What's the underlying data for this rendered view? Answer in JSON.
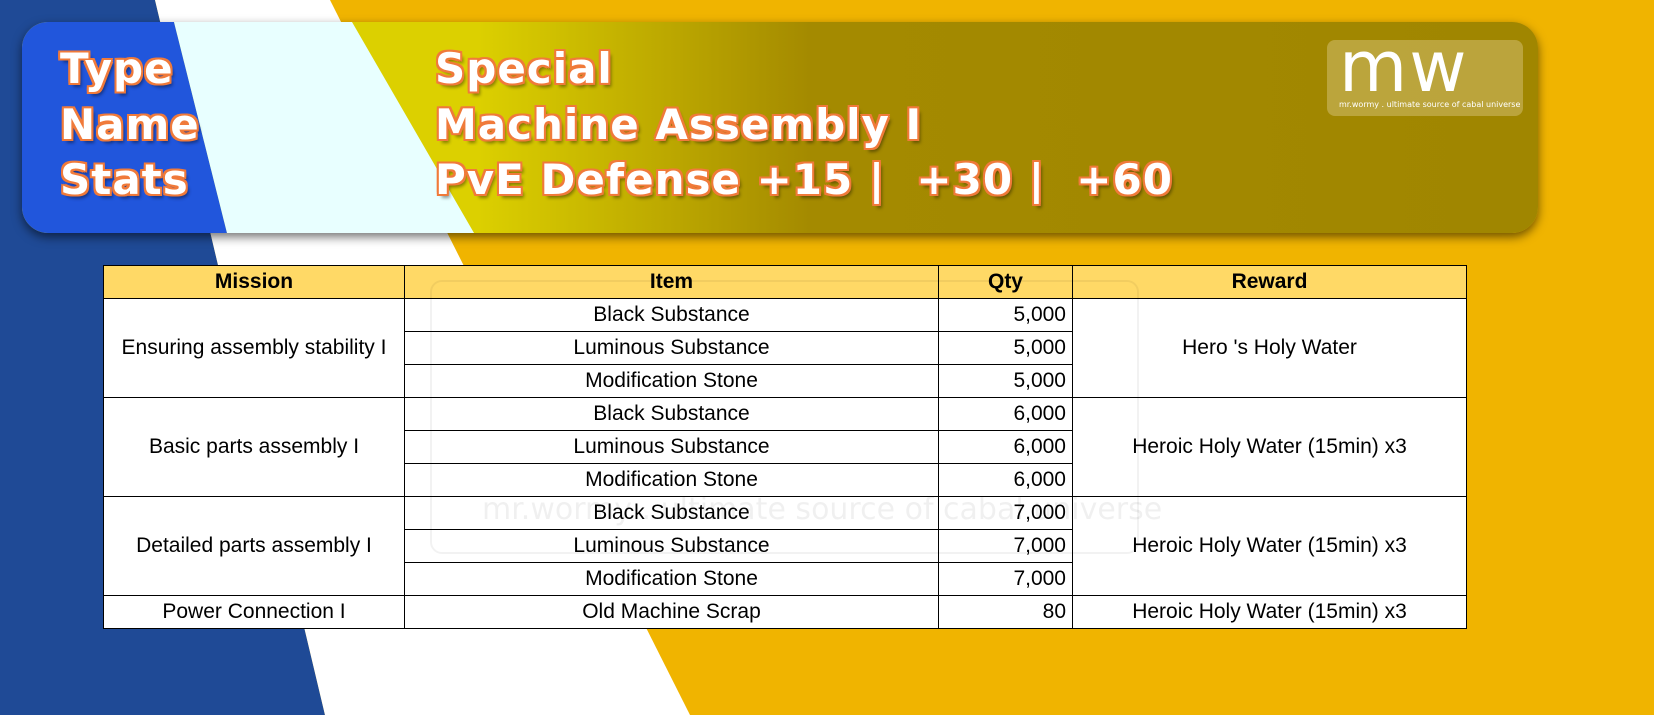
{
  "header": {
    "labels": [
      "Type",
      "Name",
      "Stats"
    ],
    "type": "Special",
    "name": "Machine Assembly I",
    "stats": "PvE Defense +15 |  +30 |  +60"
  },
  "logo": {
    "text": "mw",
    "tagline": "mr.wormy . ultimate source of cabal universe"
  },
  "colors": {
    "background": "#f0b400",
    "dark_blue": "#1f4a96",
    "card_blue": "#2156dc",
    "table_header": "#ffd966"
  },
  "table": {
    "columns": [
      "Mission",
      "Item",
      "Qty",
      "Reward"
    ],
    "missions": [
      {
        "mission": "Ensuring assembly stability I",
        "reward": "Hero 's Holy Water",
        "items": [
          {
            "item": "Black Substance",
            "qty": "5,000"
          },
          {
            "item": "Luminous Substance",
            "qty": "5,000"
          },
          {
            "item": "Modification Stone",
            "qty": "5,000"
          }
        ]
      },
      {
        "mission": "Basic parts assembly I",
        "reward": "Heroic Holy Water (15min) x3",
        "items": [
          {
            "item": "Black Substance",
            "qty": "6,000"
          },
          {
            "item": "Luminous Substance",
            "qty": "6,000"
          },
          {
            "item": "Modification Stone",
            "qty": "6,000"
          }
        ]
      },
      {
        "mission": "Detailed parts assembly I",
        "reward": "Heroic Holy Water (15min) x3",
        "items": [
          {
            "item": "Black Substance",
            "qty": "7,000"
          },
          {
            "item": "Luminous Substance",
            "qty": "7,000"
          },
          {
            "item": "Modification Stone",
            "qty": "7,000"
          }
        ]
      },
      {
        "mission": "Power Connection I",
        "reward": "Heroic Holy Water (15min) x3",
        "items": [
          {
            "item": "Old Machine Scrap",
            "qty": "80"
          }
        ]
      }
    ]
  }
}
